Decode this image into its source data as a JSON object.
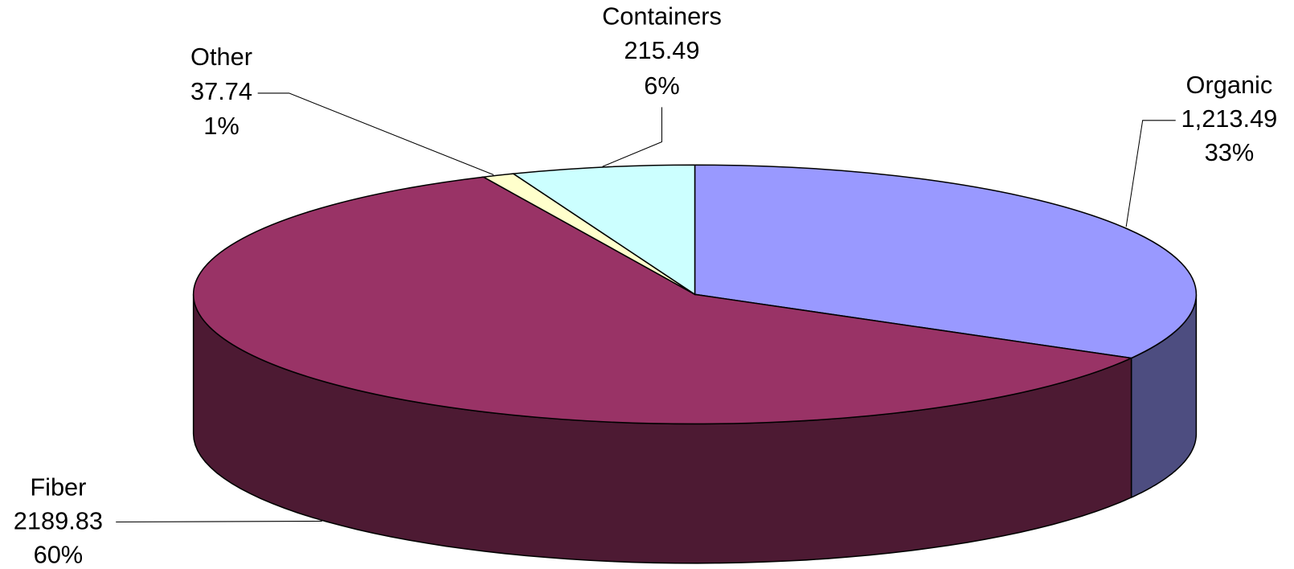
{
  "chart_data": {
    "type": "pie3d",
    "categories": [
      "Organic",
      "Fiber",
      "Other",
      "Containers"
    ],
    "values": [
      1213.49,
      2189.83,
      37.74,
      215.49
    ],
    "value_labels": [
      "1,213.49",
      "2189.83",
      "37.74",
      "215.49"
    ],
    "percent_labels": [
      "33%",
      "60%",
      "1%",
      "6%"
    ],
    "colors": [
      "#9999ff",
      "#993366",
      "#ffffcc",
      "#ccffff"
    ]
  }
}
